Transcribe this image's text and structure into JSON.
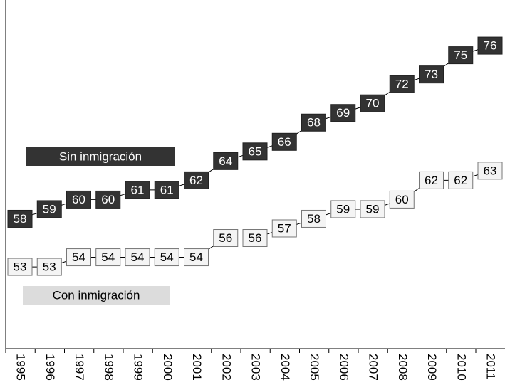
{
  "chart_data": {
    "type": "line",
    "categories": [
      "1995",
      "1996",
      "1997",
      "1998",
      "1999",
      "2000",
      "2001",
      "2002",
      "2003",
      "2004",
      "2005",
      "2006",
      "2007",
      "2008",
      "2009",
      "2010",
      "2011"
    ],
    "series": [
      {
        "name": "Sin inmigración",
        "color": "#333333",
        "values": [
          58,
          59,
          60,
          60,
          61,
          61,
          62,
          64,
          65,
          66,
          68,
          69,
          70,
          72,
          73,
          75,
          76
        ]
      },
      {
        "name": "Con inmigración",
        "color": "#f4f4f4",
        "values": [
          53,
          53,
          54,
          54,
          54,
          54,
          54,
          56,
          56,
          57,
          58,
          59,
          59,
          60,
          62,
          62,
          63
        ]
      }
    ],
    "ylim": [
      44.5,
      80
    ]
  }
}
